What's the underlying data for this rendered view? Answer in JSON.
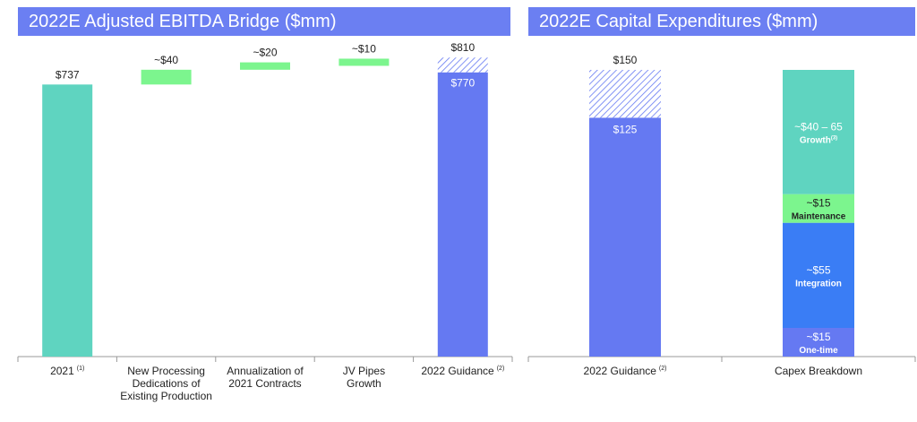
{
  "colors": {
    "header_bg": "#6b7ff2",
    "teal": "#5fd4c0",
    "green": "#7cf58e",
    "blue": "#6579f2",
    "integration_blue": "#3a7df5",
    "hatch": "#6579f2"
  },
  "chart_data": [
    {
      "type": "bar",
      "title": "2022E Adjusted EBITDA Bridge ($mm)",
      "subtype": "waterfall",
      "categories": [
        {
          "label": [
            "2021"
          ],
          "sup": "(1)"
        },
        {
          "label": [
            "New Processing",
            "Dedications of",
            "Existing Production"
          ],
          "sup": ""
        },
        {
          "label": [
            "Annualization of",
            "2021 Contracts"
          ],
          "sup": ""
        },
        {
          "label": [
            "JV Pipes",
            "Growth"
          ],
          "sup": ""
        },
        {
          "label": [
            "2022 Guidance"
          ],
          "sup": "(2)"
        }
      ],
      "bars": [
        {
          "kind": "total",
          "base": 0,
          "value": 737,
          "label": "$737",
          "color": "teal"
        },
        {
          "kind": "increment",
          "base": 737,
          "value": 40,
          "label": "~$40",
          "color": "green"
        },
        {
          "kind": "increment",
          "base": 777,
          "value": 20,
          "label": "~$20",
          "color": "green"
        },
        {
          "kind": "increment",
          "base": 797,
          "value": 10,
          "label": "~$10",
          "color": "green"
        },
        {
          "kind": "range",
          "base": 0,
          "low": 770,
          "high": 810,
          "label_high": "$810",
          "label_low": "$770",
          "color": "blue"
        }
      ],
      "ylim": [
        0,
        830
      ]
    },
    {
      "type": "bar",
      "title": "2022E Capital Expenditures ($mm)",
      "subtype": "stacked",
      "categories": [
        {
          "label": [
            "2022 Guidance"
          ],
          "sup": "(2)"
        },
        {
          "label": [
            "Capex Breakdown"
          ],
          "sup": ""
        }
      ],
      "guidance": {
        "low": 125,
        "high": 150,
        "label_low": "$125",
        "label_high": "$150"
      },
      "breakdown": [
        {
          "name": "One-time",
          "value": 15,
          "label": "~$15",
          "color": "blue",
          "sup": ""
        },
        {
          "name": "Integration",
          "value": 55,
          "label": "~$55",
          "color": "integration_blue",
          "sup": ""
        },
        {
          "name": "Maintenance",
          "value": 15,
          "label": "~$15",
          "color": "green",
          "sup": ""
        },
        {
          "name": "Growth",
          "value": 65,
          "label": "~$40 – 65",
          "color": "teal",
          "sup": "(3)"
        }
      ],
      "ylim": [
        0,
        150
      ]
    }
  ]
}
